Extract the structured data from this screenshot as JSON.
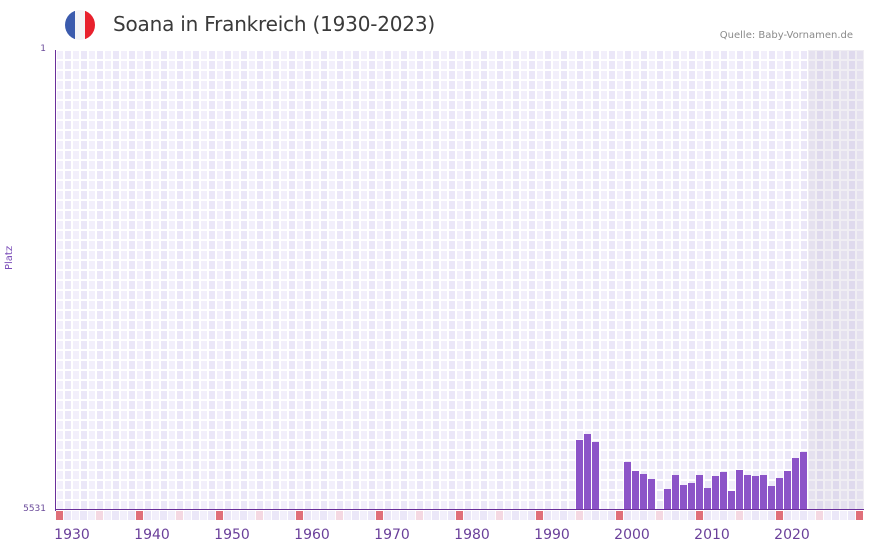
{
  "header": {
    "title": "Soana in Frankreich (1930-2023)",
    "source": "Quelle: Baby-Vornamen.de",
    "flag_colors": [
      "#3b5bad",
      "#f4f4f6",
      "#e8212d"
    ]
  },
  "colors": {
    "bar": "#8c54c8",
    "axis": "#6a2f9a",
    "decade_marker": "#e0707a",
    "half_decade_marker": "#f4d8e2",
    "grid_light": "#f2effb",
    "grid_dark": "#ebe7f8",
    "future_region": "#e3e0ec"
  },
  "chart_data": {
    "type": "bar",
    "title": "Soana in Frankreich (1930-2023)",
    "xlabel": "",
    "ylabel": "Platz",
    "y_inverted": true,
    "ylim": [
      1,
      5531
    ],
    "y_ticks": [
      "1",
      "5531"
    ],
    "x_range": [
      1930,
      2030
    ],
    "x_ticks": [
      "1930",
      "1940",
      "1950",
      "1960",
      "1970",
      "1980",
      "1990",
      "2000",
      "2010",
      "2020"
    ],
    "grid": true,
    "future_region_start": 2024,
    "categories": [
      1995,
      1996,
      1997,
      2001,
      2002,
      2003,
      2004,
      2006,
      2007,
      2008,
      2009,
      2010,
      2011,
      2012,
      2013,
      2014,
      2015,
      2016,
      2017,
      2018,
      2019,
      2020,
      2021,
      2022,
      2023
    ],
    "series": [
      {
        "name": "Platz",
        "values": [
          4690,
          4617,
          4714,
          4954,
          5062,
          5098,
          5158,
          5278,
          5110,
          5230,
          5206,
          5110,
          5266,
          5122,
          5074,
          5302,
          5050,
          5110,
          5122,
          5110,
          5242,
          5146,
          5062,
          4906,
          4834
        ]
      }
    ]
  }
}
